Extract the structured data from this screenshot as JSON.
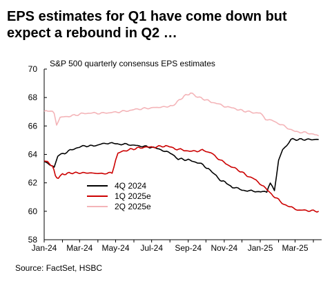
{
  "title": "EPS estimates for Q1 have come down but expect a rebound in Q2 …",
  "source": "Source: FactSet, HSBC",
  "chart_data": {
    "type": "line",
    "subtitle": "S&P 500 quarterly consensus EPS estimates",
    "xlabel": "",
    "ylabel": "",
    "xlim": [
      "2024-01-01",
      "2025-04-15"
    ],
    "ylim": [
      58,
      70
    ],
    "yticks": [
      58,
      60,
      62,
      64,
      66,
      68,
      70
    ],
    "xticks": [
      {
        "date": "2024-01-01",
        "label": "Jan-24"
      },
      {
        "date": "2024-03-01",
        "label": "Mar-24"
      },
      {
        "date": "2024-05-01",
        "label": "May-24"
      },
      {
        "date": "2024-07-01",
        "label": "Jul-24"
      },
      {
        "date": "2024-09-01",
        "label": "Sep-24"
      },
      {
        "date": "2024-11-01",
        "label": "Nov-24"
      },
      {
        "date": "2025-01-01",
        "label": "Jan-25"
      },
      {
        "date": "2025-03-01",
        "label": "Mar-25"
      }
    ],
    "grid": false,
    "legend": "bottom-left",
    "series": [
      {
        "name": "4Q 2024",
        "color": "#000000",
        "points": [
          [
            "2024-01-01",
            63.5
          ],
          [
            "2024-01-10",
            63.3
          ],
          [
            "2024-01-18",
            63.1
          ],
          [
            "2024-01-24",
            63.9
          ],
          [
            "2024-02-05",
            64.1
          ],
          [
            "2024-02-20",
            64.4
          ],
          [
            "2024-03-10",
            64.6
          ],
          [
            "2024-03-25",
            64.6
          ],
          [
            "2024-04-15",
            64.8
          ],
          [
            "2024-05-01",
            64.75
          ],
          [
            "2024-05-20",
            64.7
          ],
          [
            "2024-06-10",
            64.6
          ],
          [
            "2024-07-01",
            64.5
          ],
          [
            "2024-07-20",
            64.3
          ],
          [
            "2024-08-05",
            64.0
          ],
          [
            "2024-08-15",
            63.7
          ],
          [
            "2024-09-01",
            63.6
          ],
          [
            "2024-09-20",
            63.4
          ],
          [
            "2024-10-05",
            63.0
          ],
          [
            "2024-10-15",
            62.6
          ],
          [
            "2024-10-25",
            62.2
          ],
          [
            "2024-11-05",
            62.0
          ],
          [
            "2024-11-15",
            61.7
          ],
          [
            "2024-12-01",
            61.5
          ],
          [
            "2024-12-20",
            61.4
          ],
          [
            "2025-01-05",
            61.4
          ],
          [
            "2025-01-12",
            61.3
          ],
          [
            "2025-01-15",
            61.7
          ],
          [
            "2025-01-18",
            62.0
          ],
          [
            "2025-01-25",
            61.5
          ],
          [
            "2025-02-01",
            63.6
          ],
          [
            "2025-02-08",
            64.4
          ],
          [
            "2025-02-15",
            64.6
          ],
          [
            "2025-02-22",
            65.05
          ],
          [
            "2025-04-10",
            65.05
          ]
        ]
      },
      {
        "name": "1Q 2025e",
        "color": "#cc0000",
        "points": [
          [
            "2024-01-01",
            63.6
          ],
          [
            "2024-01-15",
            63.2
          ],
          [
            "2024-01-20",
            62.5
          ],
          [
            "2024-01-25",
            62.3
          ],
          [
            "2024-02-01",
            62.6
          ],
          [
            "2024-02-15",
            62.7
          ],
          [
            "2024-03-15",
            62.7
          ],
          [
            "2024-04-10",
            62.65
          ],
          [
            "2024-04-25",
            62.7
          ],
          [
            "2024-05-01",
            63.6
          ],
          [
            "2024-05-05",
            64.1
          ],
          [
            "2024-05-20",
            64.3
          ],
          [
            "2024-06-15",
            64.5
          ],
          [
            "2024-07-01",
            64.5
          ],
          [
            "2024-07-25",
            64.6
          ],
          [
            "2024-08-10",
            64.4
          ],
          [
            "2024-08-25",
            64.3
          ],
          [
            "2024-09-10",
            64.2
          ],
          [
            "2024-09-25",
            64.3
          ],
          [
            "2024-10-10",
            64.1
          ],
          [
            "2024-10-25",
            63.6
          ],
          [
            "2024-11-10",
            63.2
          ],
          [
            "2024-11-25",
            62.9
          ],
          [
            "2024-12-10",
            62.5
          ],
          [
            "2024-12-25",
            62.2
          ],
          [
            "2025-01-10",
            61.6
          ],
          [
            "2025-01-20",
            61.2
          ],
          [
            "2025-02-01",
            60.8
          ],
          [
            "2025-02-10",
            60.5
          ],
          [
            "2025-02-20",
            60.3
          ],
          [
            "2025-03-05",
            60.1
          ],
          [
            "2025-04-10",
            60.0
          ]
        ]
      },
      {
        "name": "2Q 2025e",
        "color": "#f4b4b8",
        "points": [
          [
            "2024-01-01",
            67.0
          ],
          [
            "2024-01-10",
            67.1
          ],
          [
            "2024-01-18",
            66.9
          ],
          [
            "2024-01-22",
            66.1
          ],
          [
            "2024-01-28",
            66.6
          ],
          [
            "2024-02-15",
            66.7
          ],
          [
            "2024-03-10",
            66.9
          ],
          [
            "2024-04-10",
            66.9
          ],
          [
            "2024-05-10",
            67.0
          ],
          [
            "2024-06-10",
            67.2
          ],
          [
            "2024-07-10",
            67.3
          ],
          [
            "2024-08-05",
            67.4
          ],
          [
            "2024-08-25",
            68.1
          ],
          [
            "2024-09-05",
            68.3
          ],
          [
            "2024-09-20",
            68.0
          ],
          [
            "2024-10-10",
            67.7
          ],
          [
            "2024-11-01",
            67.4
          ],
          [
            "2024-11-20",
            67.2
          ],
          [
            "2024-12-10",
            67.0
          ],
          [
            "2025-01-01",
            66.9
          ],
          [
            "2025-01-10",
            66.5
          ],
          [
            "2025-01-20",
            66.4
          ],
          [
            "2025-02-10",
            66.0
          ],
          [
            "2025-03-01",
            65.6
          ],
          [
            "2025-03-25",
            65.5
          ],
          [
            "2025-04-10",
            65.3
          ]
        ]
      }
    ]
  }
}
